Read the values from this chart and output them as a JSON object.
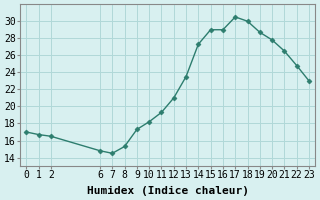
{
  "x": [
    0,
    1,
    2,
    6,
    7,
    8,
    9,
    10,
    11,
    12,
    13,
    14,
    15,
    16,
    17,
    18,
    19,
    20,
    21,
    22,
    23
  ],
  "y": [
    17.0,
    16.7,
    16.5,
    14.8,
    14.5,
    15.3,
    17.3,
    18.2,
    19.3,
    21.0,
    23.5,
    27.3,
    29.0,
    29.0,
    30.5,
    30.0,
    28.7,
    27.8,
    26.5,
    24.8,
    23.0
  ],
  "line_color": "#2d7d6e",
  "marker_color": "#2d7d6e",
  "bg_color": "#d8f0f0",
  "grid_color": "#b0d8d8",
  "xlabel": "Humidex (Indice chaleur)",
  "ylim": [
    13,
    32
  ],
  "xlim": [
    -0.5,
    23.5
  ],
  "yticks": [
    14,
    16,
    18,
    20,
    22,
    24,
    26,
    28,
    30
  ],
  "xticks": [
    0,
    1,
    2,
    6,
    7,
    8,
    9,
    10,
    11,
    12,
    13,
    14,
    15,
    16,
    17,
    18,
    19,
    20,
    21,
    22,
    23
  ],
  "xlabel_fontsize": 8,
  "tick_fontsize": 7
}
